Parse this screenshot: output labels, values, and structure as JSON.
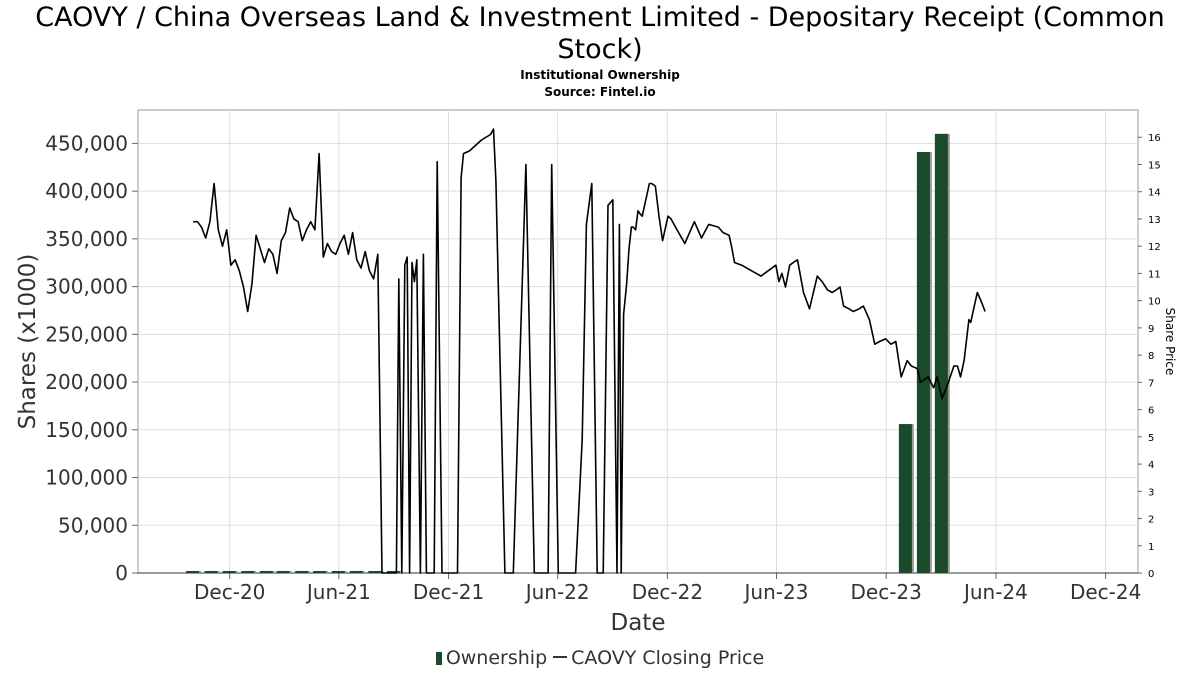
{
  "title": "CAOVY / China Overseas Land & Investment Limited - Depositary Receipt (Common Stock)",
  "subtitle1": "Institutional Ownership",
  "subtitle2": "Source: Fintel.io",
  "legend": {
    "bar_label": "Ownership",
    "line_label": "CAOVY Closing Price"
  },
  "colors": {
    "bar": "#1a4a2a",
    "bar_shadow": "#999999",
    "line": "#000000",
    "grid": "#dddddd"
  },
  "chart_data": {
    "type": "bar+line",
    "xlabel": "Date",
    "ylabel": "Shares (x1000)",
    "y2label": "Share Price",
    "ylim": [
      0,
      485000
    ],
    "y2lim": [
      0,
      17
    ],
    "xlim": [
      "2020-07-01",
      "2025-01-24"
    ],
    "x_ticks": [
      "Dec-20",
      "Jun-21",
      "Dec-21",
      "Jun-22",
      "Dec-22",
      "Jun-23",
      "Dec-23",
      "Jun-24",
      "Dec-24"
    ],
    "y_ticks": [
      "0",
      "50,000",
      "100,000",
      "150,000",
      "200,000",
      "250,000",
      "300,000",
      "350,000",
      "400,000",
      "450,000"
    ],
    "y2_ticks": [
      "0",
      "1",
      "2",
      "3",
      "4",
      "5",
      "6",
      "7",
      "8",
      "9",
      "10",
      "11",
      "12",
      "13",
      "14",
      "15",
      "16"
    ],
    "grid": true,
    "bars": {
      "name": "Ownership",
      "x": [
        "2020-09-30",
        "2020-10-31",
        "2020-11-30",
        "2020-12-31",
        "2021-01-31",
        "2021-02-28",
        "2021-03-31",
        "2021-04-30",
        "2021-05-31",
        "2021-06-30",
        "2021-07-31",
        "2021-08-31",
        "2024-01-02",
        "2024-02-01",
        "2024-03-02"
      ],
      "values": [
        1500,
        1500,
        1500,
        1500,
        1500,
        1500,
        1500,
        1500,
        1500,
        1500,
        1000,
        1000,
        156000,
        441000,
        460000
      ]
    },
    "line": {
      "name": "CAOVY Closing Price",
      "x": [
        "2020-10-01",
        "2020-10-08",
        "2020-10-15",
        "2020-10-22",
        "2020-10-29",
        "2020-11-05",
        "2020-11-12",
        "2020-11-19",
        "2020-11-26",
        "2020-12-03",
        "2020-12-10",
        "2020-12-17",
        "2020-12-24",
        "2020-12-31",
        "2021-01-07",
        "2021-01-14",
        "2021-01-21",
        "2021-01-28",
        "2021-02-04",
        "2021-02-11",
        "2021-02-18",
        "2021-02-25",
        "2021-03-04",
        "2021-03-11",
        "2021-03-18",
        "2021-03-25",
        "2021-04-01",
        "2021-04-08",
        "2021-04-15",
        "2021-04-22",
        "2021-04-29",
        "2021-05-06",
        "2021-05-13",
        "2021-05-20",
        "2021-05-27",
        "2021-06-03",
        "2021-06-10",
        "2021-06-17",
        "2021-06-24",
        "2021-07-01",
        "2021-07-08",
        "2021-07-15",
        "2021-07-22",
        "2021-07-29",
        "2021-08-05",
        "2021-08-12",
        "2021-08-19",
        "2021-09-02",
        "2021-09-05",
        "2021-09-09",
        "2021-09-14",
        "2021-09-19",
        "2021-09-23",
        "2021-09-27",
        "2021-10-01",
        "2021-10-05",
        "2021-10-09",
        "2021-10-15",
        "2021-10-20",
        "2021-10-25",
        "2021-11-02",
        "2021-11-07",
        "2021-11-12",
        "2021-11-20",
        "2021-12-06",
        "2021-12-16",
        "2021-12-22",
        "2021-12-26",
        "2022-01-05",
        "2022-01-25",
        "2022-02-09",
        "2022-02-14",
        "2022-02-18",
        "2022-03-05",
        "2022-03-19",
        "2022-04-09",
        "2022-04-23",
        "2022-05-01",
        "2022-05-05",
        "2022-05-09",
        "2022-05-16",
        "2022-05-22",
        "2022-06-02",
        "2022-06-10",
        "2022-06-14",
        "2022-06-22",
        "2022-07-01",
        "2022-07-12",
        "2022-07-19",
        "2022-07-28",
        "2022-08-06",
        "2022-08-16",
        "2022-08-24",
        "2022-09-01",
        "2022-09-08",
        "2022-09-12",
        "2022-09-15",
        "2022-09-19",
        "2022-09-24",
        "2022-09-28",
        "2022-10-02",
        "2022-10-05",
        "2022-10-09",
        "2022-10-13",
        "2022-10-16",
        "2022-10-20",
        "2022-11-01",
        "2022-11-05",
        "2022-11-11",
        "2022-11-17",
        "2022-11-23",
        "2022-12-02",
        "2022-12-07",
        "2022-12-17",
        "2022-12-30",
        "2023-01-15",
        "2023-01-27",
        "2023-02-08",
        "2023-02-24",
        "2023-03-04",
        "2023-03-14",
        "2023-03-18",
        "2023-03-23",
        "2023-04-04",
        "2023-05-06",
        "2023-05-31",
        "2023-06-05",
        "2023-06-10",
        "2023-06-16",
        "2023-06-23",
        "2023-06-29",
        "2023-07-06",
        "2023-07-16",
        "2023-07-26",
        "2023-08-08",
        "2023-08-16",
        "2023-08-25",
        "2023-09-02",
        "2023-09-09",
        "2023-09-15",
        "2023-09-21",
        "2023-09-30",
        "2023-10-07",
        "2023-10-17",
        "2023-10-24",
        "2023-11-03",
        "2023-11-12",
        "2023-11-20",
        "2023-11-30",
        "2023-12-09",
        "2023-12-17",
        "2023-12-26",
        "2024-01-05",
        "2024-01-12",
        "2024-01-22",
        "2024-01-27",
        "2024-02-09",
        "2024-02-18",
        "2024-02-24",
        "2024-03-03",
        "2024-03-12",
        "2024-03-23",
        "2024-03-29",
        "2024-04-03",
        "2024-04-09",
        "2024-04-17",
        "2024-04-20",
        "2024-04-26",
        "2024-05-01",
        "2024-05-07",
        "2024-05-14"
      ],
      "values": [
        12.9,
        12.9,
        12.7,
        12.3,
        12.9,
        14.3,
        12.6,
        12.0,
        12.6,
        11.3,
        11.5,
        11.1,
        10.5,
        9.6,
        10.6,
        12.4,
        11.9,
        11.4,
        11.9,
        11.7,
        11.0,
        12.2,
        12.5,
        13.4,
        13.0,
        12.9,
        12.2,
        12.6,
        12.9,
        12.6,
        15.4,
        11.6,
        12.1,
        11.8,
        11.7,
        12.1,
        12.4,
        11.7,
        12.5,
        11.5,
        11.2,
        11.8,
        11.1,
        10.8,
        11.7,
        0.0,
        0.0,
        0.0,
        0.0,
        10.8,
        0.0,
        11.3,
        11.6,
        0.0,
        11.4,
        10.7,
        11.5,
        0.0,
        11.7,
        0.0,
        0.0,
        0.0,
        15.1,
        0.0,
        0.0,
        0.0,
        14.5,
        15.4,
        15.5,
        15.9,
        16.1,
        16.3,
        14.4,
        0.0,
        0.0,
        15.0,
        0.0,
        0.0,
        0.0,
        0.0,
        0.0,
        15.0,
        0.0,
        0.0,
        0.0,
        0.0,
        0.0,
        4.9,
        12.8,
        14.3,
        0.0,
        0.0,
        13.5,
        13.7,
        0.0,
        12.8,
        0.0,
        9.5,
        10.6,
        11.9,
        12.7,
        12.7,
        12.6,
        13.3,
        13.2,
        13.1,
        14.3,
        14.3,
        14.2,
        13.1,
        12.2,
        13.1,
        13.0,
        12.6,
        12.1,
        12.9,
        12.3,
        12.8,
        12.7,
        12.5,
        12.4,
        12.0,
        11.4,
        11.3,
        10.9,
        11.3,
        10.7,
        11.0,
        10.5,
        11.3,
        11.4,
        11.5,
        10.3,
        9.7,
        10.9,
        10.7,
        10.4,
        10.3,
        10.4,
        10.5,
        9.8,
        9.7,
        9.6,
        9.7,
        9.8,
        9.3,
        8.4,
        8.5,
        8.6,
        8.4,
        8.5,
        7.2,
        7.8,
        7.6,
        7.5,
        7.0,
        7.2,
        6.8,
        7.2,
        6.4,
        6.9,
        7.6,
        7.6,
        7.2,
        7.8,
        9.3,
        9.2,
        9.8,
        10.3,
        10.0,
        9.6
      ]
    }
  }
}
